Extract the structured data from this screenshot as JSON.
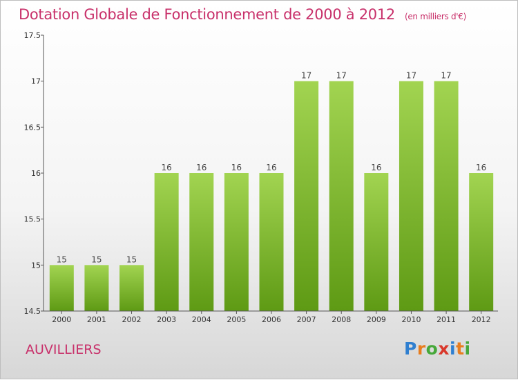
{
  "header": {
    "title": "Dotation Globale de Fonctionnement de 2000 à 2012",
    "subtitle": "(en milliers d'€)"
  },
  "footer": {
    "commune": "AUVILLIERS",
    "logo_text": "Proxiti",
    "logo_letters": [
      {
        "ch": "P",
        "color": "#2f7fd0"
      },
      {
        "ch": "r",
        "color": "#e87d1e"
      },
      {
        "ch": "o",
        "color": "#46a83a"
      },
      {
        "ch": "x",
        "color": "#d9382b"
      },
      {
        "ch": "i",
        "color": "#2f7fd0"
      },
      {
        "ch": "t",
        "color": "#e87d1e"
      },
      {
        "ch": "i",
        "color": "#46a83a"
      }
    ]
  },
  "chart_data": {
    "type": "bar",
    "categories": [
      "2000",
      "2001",
      "2002",
      "2003",
      "2004",
      "2005",
      "2006",
      "2007",
      "2008",
      "2009",
      "2010",
      "2011",
      "2012"
    ],
    "values": [
      15,
      15,
      15,
      16,
      16,
      16,
      16,
      17,
      17,
      16,
      17,
      17,
      16
    ],
    "data_labels": [
      "15",
      "15",
      "15",
      "16",
      "16",
      "16",
      "16",
      "17",
      "17",
      "16",
      "17",
      "17",
      "16"
    ],
    "yticks": [
      14.5,
      15,
      15.5,
      16,
      16.5,
      17,
      17.5
    ],
    "ytick_labels": [
      "14.5",
      "15",
      "15.5",
      "16",
      "16.5",
      "17",
      "17.5"
    ],
    "ylim": [
      14.5,
      17.5
    ],
    "xlabel": "",
    "ylabel": "",
    "grid": false,
    "colors": {
      "bar_top": "#9fd04e",
      "bar_bottom": "#5e9a14",
      "title": "#c8306a",
      "axis": "#555555"
    }
  }
}
